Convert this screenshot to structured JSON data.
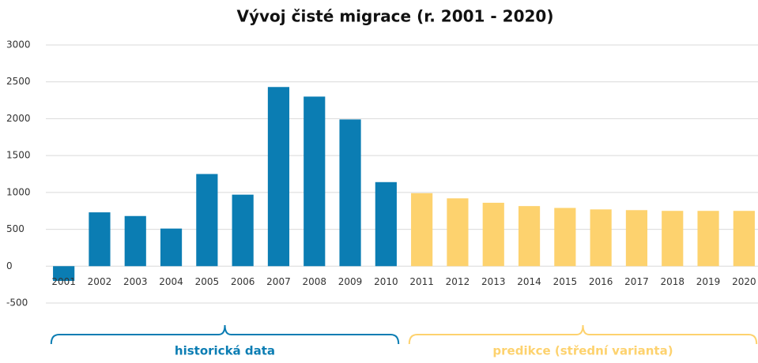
{
  "chart_data": {
    "type": "bar",
    "title": "Vývoj čisté migrace (r. 2001 - 2020)",
    "categories": [
      "2001",
      "2002",
      "2003",
      "2004",
      "2005",
      "2006",
      "2007",
      "2008",
      "2009",
      "2010",
      "2011",
      "2012",
      "2013",
      "2014",
      "2015",
      "2016",
      "2017",
      "2018",
      "2019",
      "2020"
    ],
    "series": [
      {
        "name": "historická data",
        "color": "#0b7db3",
        "values": [
          -200,
          730,
          680,
          510,
          1250,
          970,
          2430,
          2300,
          1990,
          1140,
          null,
          null,
          null,
          null,
          null,
          null,
          null,
          null,
          null,
          null
        ]
      },
      {
        "name": "predikce (střední varianta)",
        "color": "#fdd26e",
        "values": [
          null,
          null,
          null,
          null,
          null,
          null,
          null,
          null,
          null,
          null,
          990,
          920,
          860,
          815,
          790,
          770,
          760,
          750,
          750,
          750
        ]
      }
    ],
    "ylim": [
      -500,
      3000
    ],
    "yticks": [
      -500,
      0,
      500,
      1000,
      1500,
      2000,
      2500,
      3000
    ],
    "grid": true
  }
}
